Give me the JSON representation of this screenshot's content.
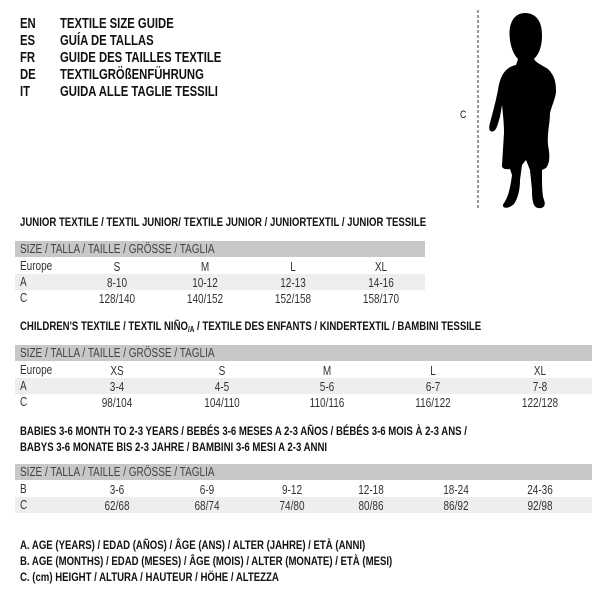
{
  "titles": [
    {
      "code": "EN",
      "text": "TEXTILE SIZE GUIDE"
    },
    {
      "code": "ES",
      "text": "GUÍA DE TALLAS"
    },
    {
      "code": "FR",
      "text": "GUIDE DES TAILLES TEXTILE"
    },
    {
      "code": "DE",
      "text": "TEXTILGRÖßENFÜHRUNG"
    },
    {
      "code": "IT",
      "text": "GUIDA ALLE TAGLIE TESSILI"
    }
  ],
  "figure": {
    "measure_label": "C",
    "icon": "child-silhouette"
  },
  "junior": {
    "heading": "JUNIOR TEXTILE / TEXTIL JUNIOR/ TEXTILE JUNIOR / JUNIORTEXTIL / JUNIOR TESSILE",
    "header": "SIZE / TALLA / TAILLE / GRÖSSE / TAGLIA",
    "rows": [
      {
        "label": "Europe",
        "cells": [
          "S",
          "M",
          "L",
          "XL"
        ]
      },
      {
        "label": "A",
        "cells": [
          "8-10",
          "10-12",
          "12-13",
          "14-16"
        ]
      },
      {
        "label": "C",
        "cells": [
          "128/140",
          "140/152",
          "152/158",
          "158/170"
        ]
      }
    ]
  },
  "children": {
    "heading_pre": "CHILDREN'S TEXTILE / TEXTIL NIÑO",
    "heading_sub": "/A",
    "heading_post": " / TEXTILE DES ENFANTS / KINDERTEXTIL / BAMBINI TESSILE",
    "header": "SIZE / TALLA / TAILLE / GRÖSSE / TAGLIA",
    "rows": [
      {
        "label": "Europe",
        "cells": [
          "XS",
          "S",
          "M",
          "L",
          "XL"
        ]
      },
      {
        "label": "A",
        "cells": [
          "3-4",
          "4-5",
          "5-6",
          "6-7",
          "7-8"
        ]
      },
      {
        "label": "C",
        "cells": [
          "98/104",
          "104/110",
          "110/116",
          "116/122",
          "122/128"
        ]
      }
    ]
  },
  "babies": {
    "heading_line1": "BABIES 3-6 MONTH TO 2-3 YEARS / BEBÉS 3-6 MESES A 2-3 AÑOS / BÉBÉS 3-6 MOIS À 2-3 ANS /",
    "heading_line2": "BABYS 3-6 MONATE BIS 2-3 JAHRE / BAMBINI 3-6 MESI A 2-3 ANNI",
    "header": "SIZE / TALLA / TAILLE / GRÖSSE / TAGLIA",
    "rows": [
      {
        "label": "B",
        "cells": [
          "3-6",
          "6-9",
          "9-12",
          "12-18",
          "18-24",
          "24-36"
        ]
      },
      {
        "label": "C",
        "cells": [
          "62/68",
          "68/74",
          "74/80",
          "80/86",
          "86/92",
          "92/98"
        ]
      }
    ]
  },
  "legend": [
    "A. AGE (YEARS) / EDAD (AÑOS) / ÂGE (ANS) / ALTER (JAHRE) / ETÀ (ANNI)",
    "B. AGE (MONTHS) / EDAD (MESES) / ÂGE (MOIS) / ALTER (MONATE) / ETÀ (MESI)",
    "C. (cm) HEIGHT / ALTURA / HAUTEUR / HÖHE / ALTEZZA"
  ]
}
